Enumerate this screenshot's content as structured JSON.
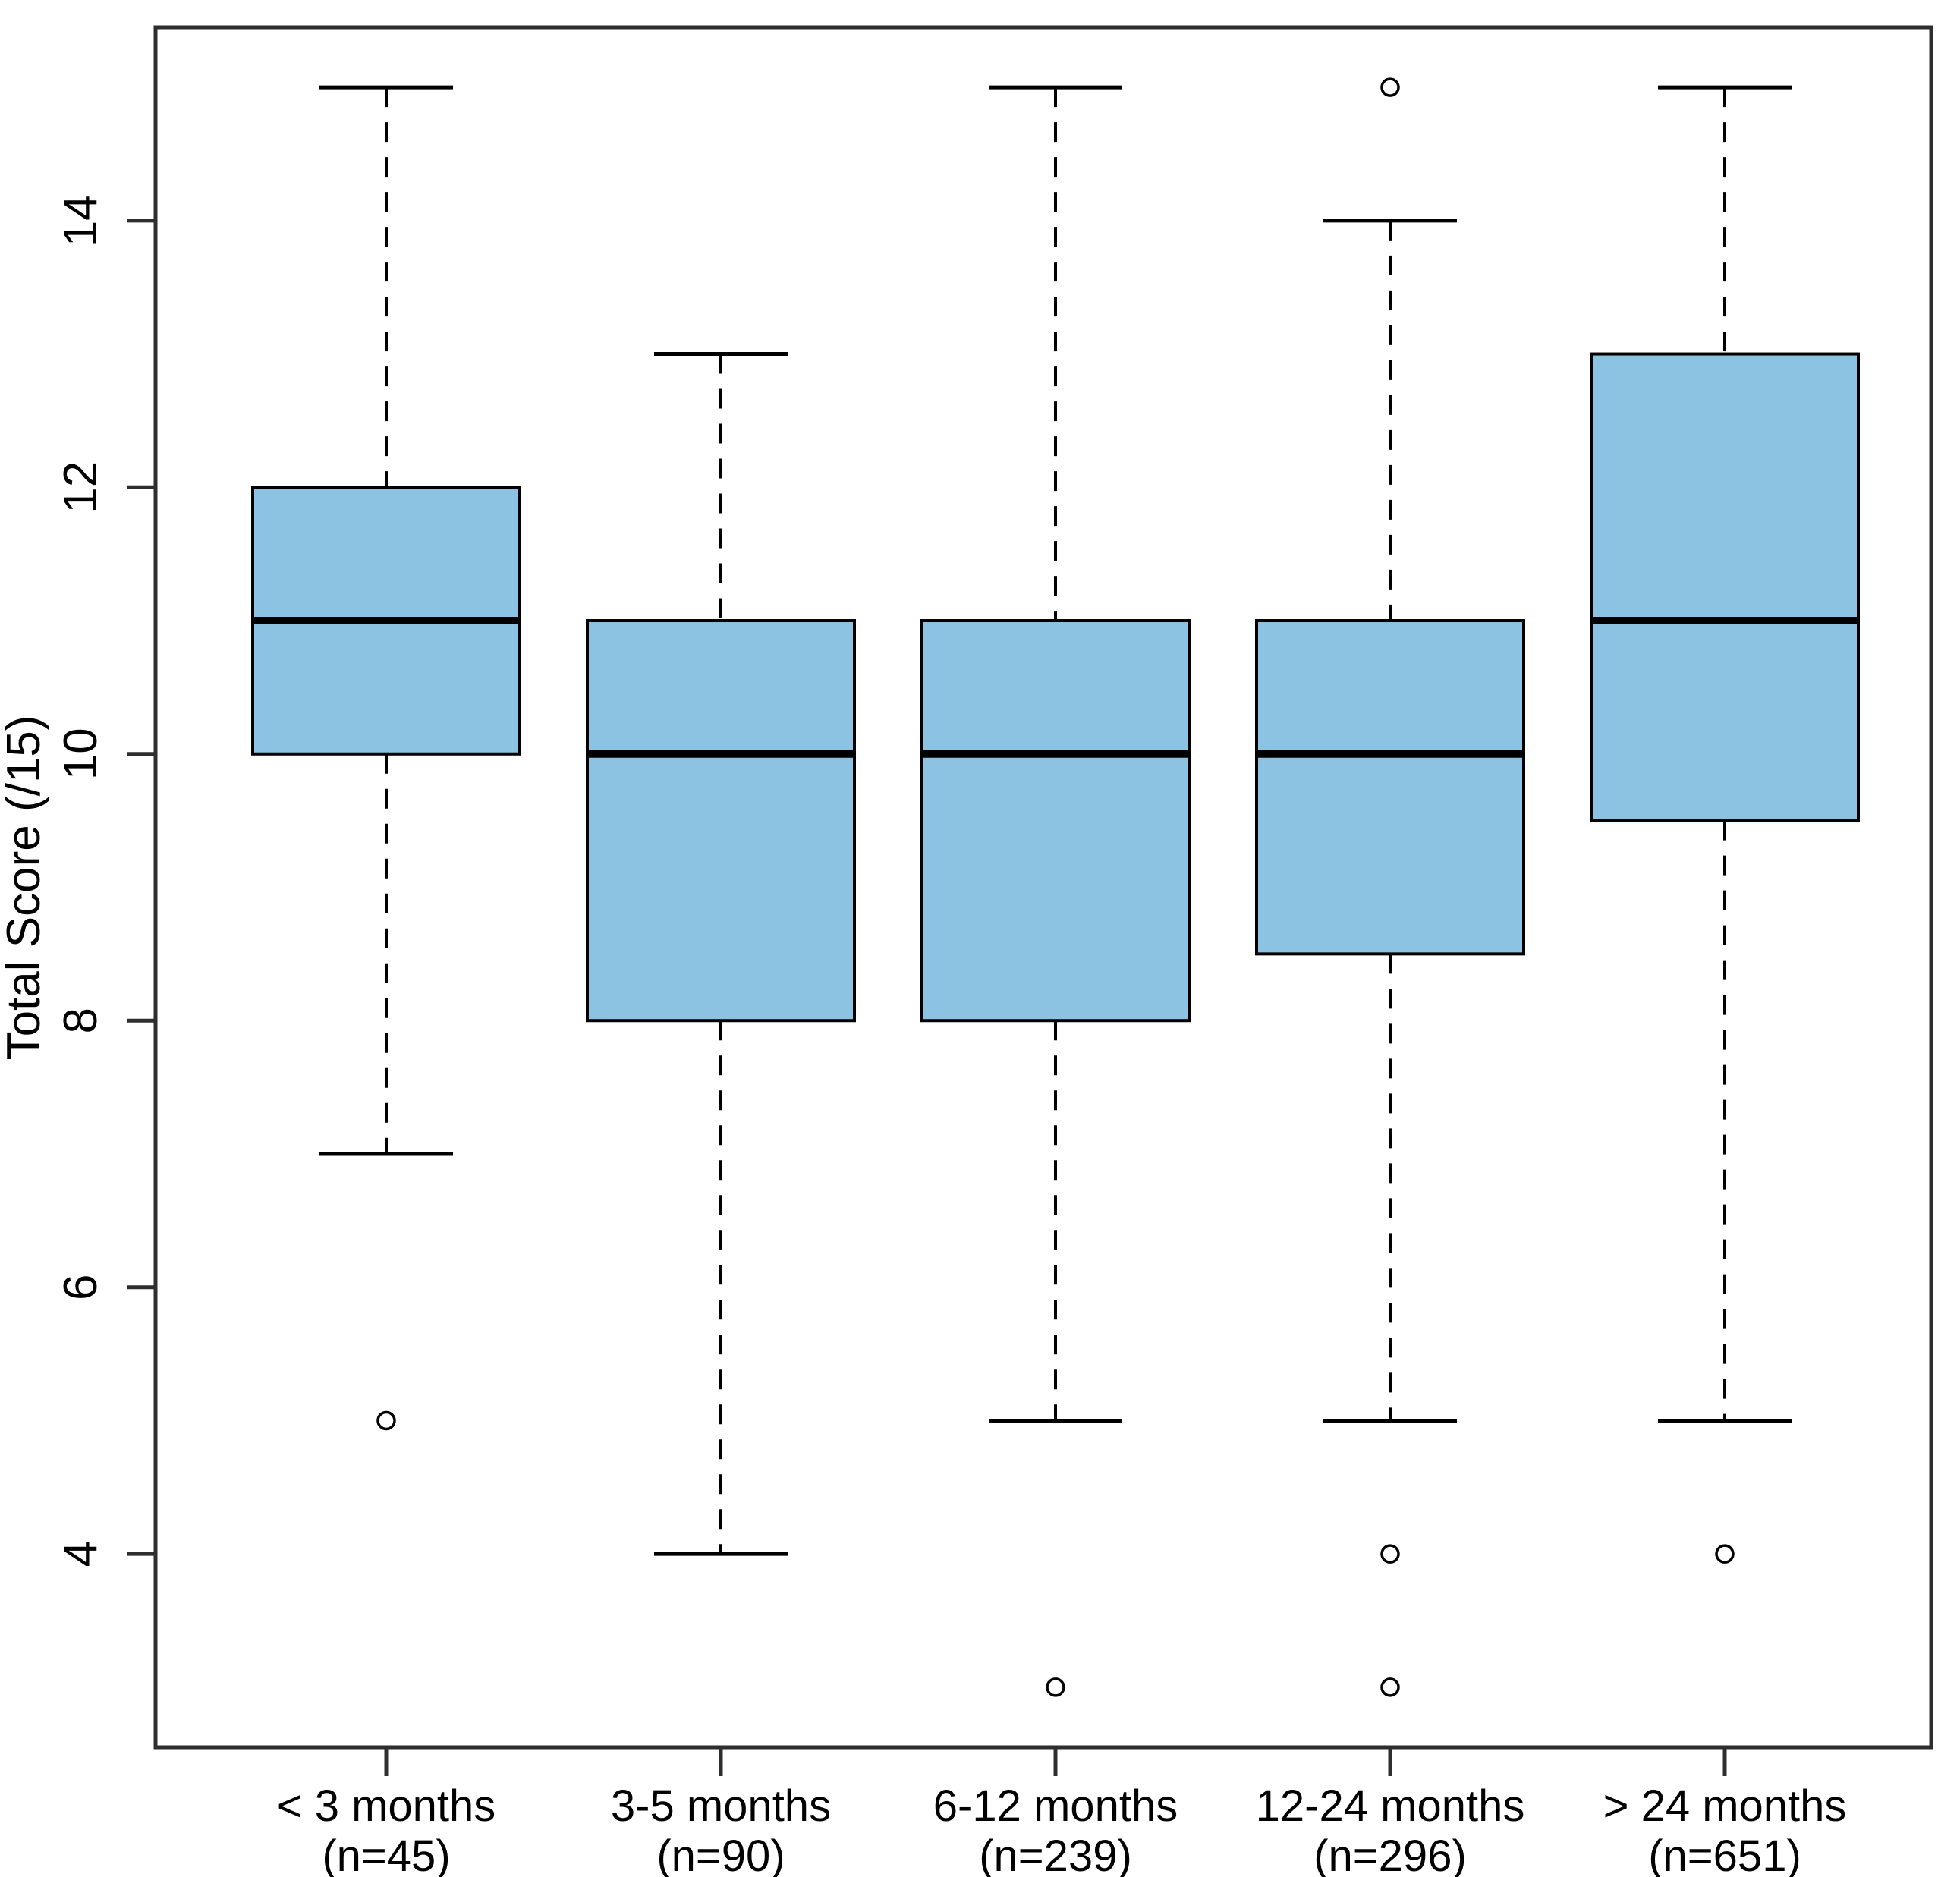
{
  "chart_data": {
    "type": "boxplot",
    "title": "",
    "xlabel": "",
    "ylabel": "Total Score (/15)",
    "ylim": [
      2.55,
      15.45
    ],
    "yticks": [
      4,
      6,
      8,
      10,
      12,
      14
    ],
    "grid": false,
    "legend": "none",
    "box_fill_color": "#8CC3E2",
    "line_color": "#000000",
    "frame_color": "#2e2e2e",
    "categories": [
      {
        "label": "< 3 months",
        "n_label": "(n=45)",
        "whisker_low": 7,
        "q1": 10,
        "median": 11,
        "q3": 12,
        "whisker_high": 15,
        "outliers": [
          5
        ]
      },
      {
        "label": "3-5 months",
        "n_label": "(n=90)",
        "whisker_low": 4,
        "q1": 8,
        "median": 10,
        "q3": 11,
        "whisker_high": 13,
        "outliers": []
      },
      {
        "label": "6-12 months",
        "n_label": "(n=239)",
        "whisker_low": 5,
        "q1": 8,
        "median": 10,
        "q3": 11,
        "whisker_high": 15,
        "outliers": [
          3
        ]
      },
      {
        "label": "12-24 months",
        "n_label": "(n=296)",
        "whisker_low": 5,
        "q1": 8.5,
        "median": 10,
        "q3": 11,
        "whisker_high": 14,
        "outliers": [
          15,
          4,
          3
        ]
      },
      {
        "label": "> 24 months",
        "n_label": "(n=651)",
        "whisker_low": 5,
        "q1": 9.5,
        "median": 11,
        "q3": 13,
        "whisker_high": 15,
        "outliers": [
          4
        ]
      }
    ]
  }
}
